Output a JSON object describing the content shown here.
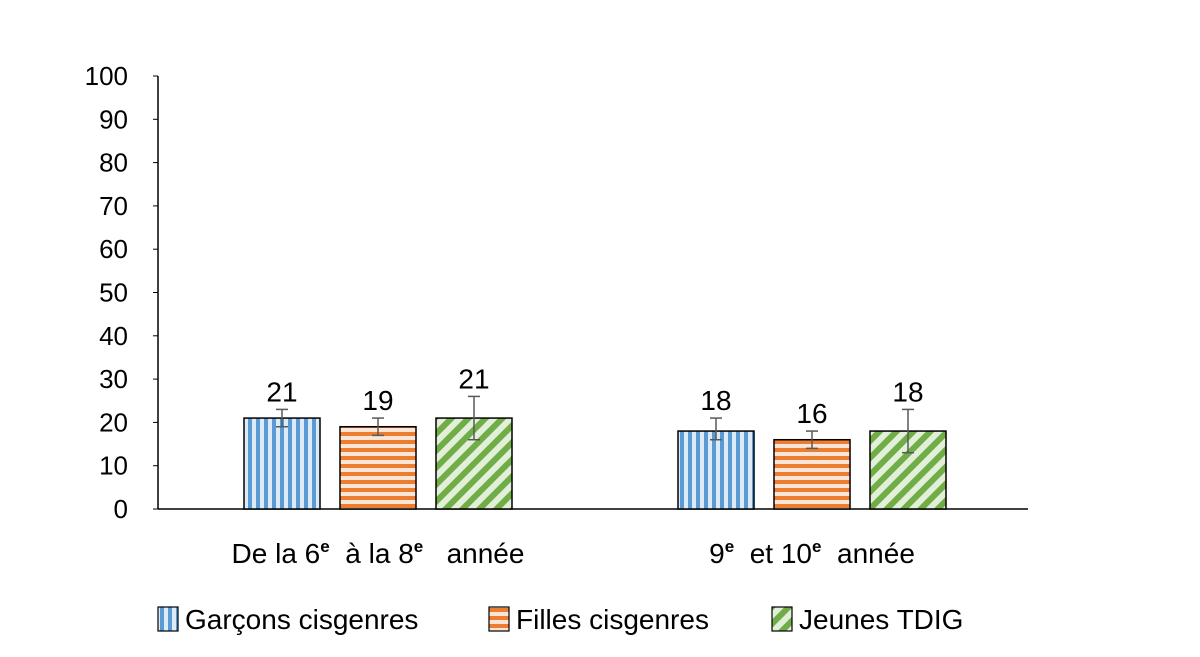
{
  "chart_data": {
    "type": "bar",
    "categories": [
      {
        "parts": [
          [
            "De la 6",
            false
          ],
          [
            "e",
            true
          ],
          [
            "  à la 8",
            false
          ],
          [
            "e",
            true
          ],
          [
            "   année",
            false
          ]
        ]
      },
      {
        "parts": [
          [
            "9",
            false
          ],
          [
            "e",
            true
          ],
          [
            "  et 10",
            false
          ],
          [
            "e",
            true
          ],
          [
            "  année",
            false
          ]
        ]
      }
    ],
    "series": [
      {
        "name": "Garçons cisgenres",
        "values": [
          21,
          18
        ],
        "error_low": [
          19,
          16
        ],
        "error_high": [
          23,
          21
        ],
        "pattern": "vertical-stripes",
        "color": "#5b9bd5",
        "light": "#ddebf7"
      },
      {
        "name": "Filles cisgenres",
        "values": [
          19,
          16
        ],
        "error_low": [
          17,
          14
        ],
        "error_high": [
          21,
          18
        ],
        "pattern": "horizontal-stripes",
        "color": "#ed7d31",
        "light": "#fbe5d6"
      },
      {
        "name": "Jeunes TDIG",
        "values": [
          21,
          18
        ],
        "error_low": [
          16,
          13
        ],
        "error_high": [
          26,
          23
        ],
        "pattern": "diagonal-stripes",
        "color": "#70ad47",
        "light": "#e2f0d9"
      }
    ],
    "data_labels": [
      [
        "21",
        "18"
      ],
      [
        "19",
        "16"
      ],
      [
        "21",
        "18"
      ]
    ],
    "ylim": [
      0,
      100
    ],
    "yticks": [
      "0",
      "10",
      "20",
      "30",
      "40",
      "50",
      "60",
      "70",
      "80",
      "90",
      "100"
    ],
    "legend_position": "bottom",
    "grid": false
  }
}
